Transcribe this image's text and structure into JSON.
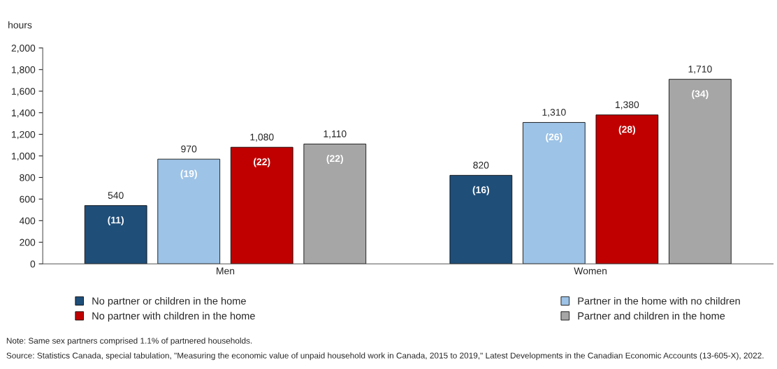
{
  "chart_data": {
    "type": "bar",
    "ylabel": "hours",
    "categories": [
      "Men",
      "Women"
    ],
    "series": [
      {
        "name": "No partner or children in the home",
        "color": "#1f4e79",
        "values": [
          540,
          820
        ],
        "value_labels": [
          "540",
          "820"
        ]
      },
      {
        "name": "Partner in the home with no children",
        "color": "#9dc3e6",
        "values": [
          970,
          1310
        ],
        "value_labels": [
          "970",
          "1,310"
        ]
      },
      {
        "name": "No partner with children in the home",
        "color": "#c00000",
        "values": [
          1080,
          1380
        ],
        "value_labels": [
          "1,080",
          "1,380"
        ]
      },
      {
        "name": "Partner and children in the home",
        "color": "#a6a6a6",
        "values": [
          1110,
          1710
        ],
        "value_labels": [
          "1,110",
          "1,710"
        ]
      }
    ],
    "ylim": [
      0,
      2000
    ],
    "yticks": [
      0,
      200,
      400,
      600,
      800,
      {
        "value": 1000,
        "label": "1,000"
      },
      {
        "value": 1200,
        "label": "1,200"
      },
      {
        "value": 1400,
        "label": "1,400"
      },
      {
        "value": 1600,
        "label": "1,600"
      },
      {
        "value": 1800,
        "label": "1,800"
      },
      {
        "value": 2000,
        "label": "2,000"
      }
    ],
    "data_labels": true,
    "legend": "bottom",
    "grid": false,
    "annotations": [
      "(11)",
      "(19)",
      "(22)",
      "(22)",
      "(16)",
      "(26)",
      "(28)",
      "(34)",
      "Note: Same sex partners comprised 1.1% of partnered households.",
      "Source: Statistics Canada, special tabulation, \"Measuring the economic value of unpaid household work in Canada, 2015 to 2019,\" Latest Developments in the Canadian Economic Accounts (13-605-X), 2022."
    ]
  }
}
